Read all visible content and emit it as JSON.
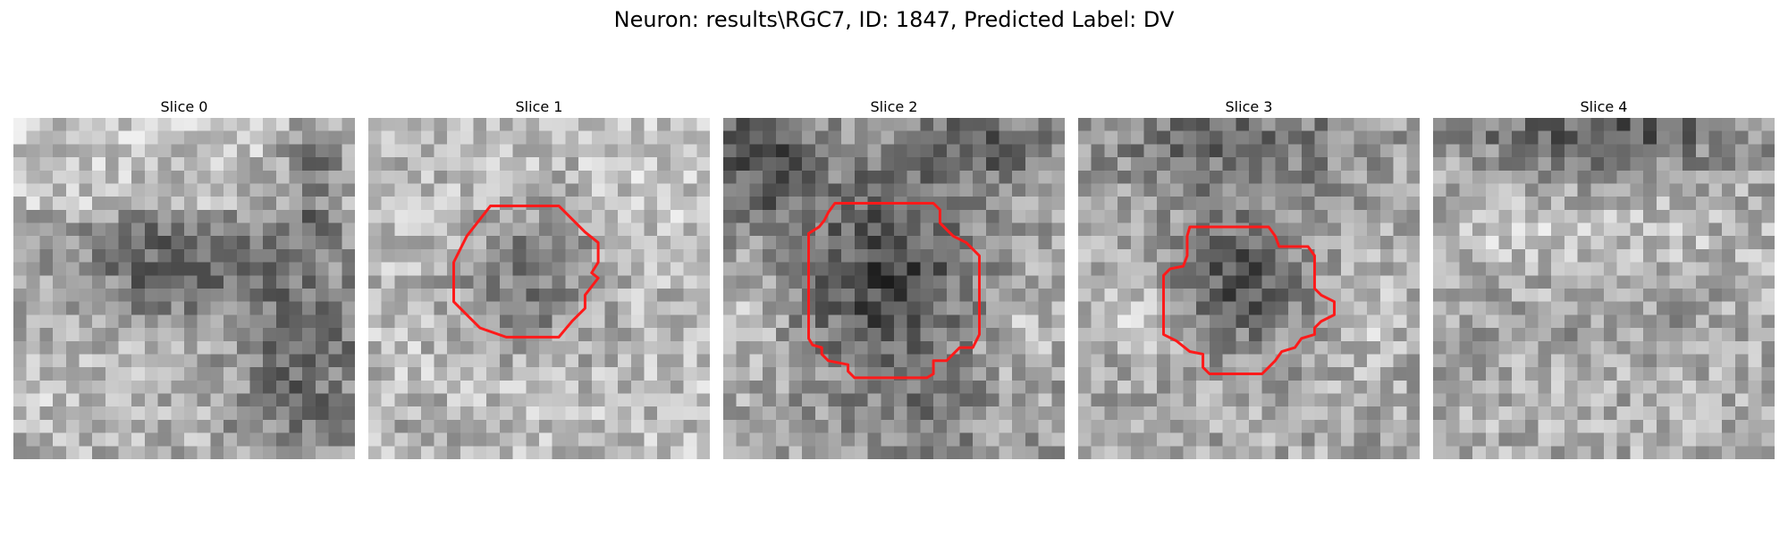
{
  "figure": {
    "title": "Neuron: results\\RGC7, ID: 1847, Predicted Label: DV",
    "outline_color": "#ff1a1a",
    "grid_size": 26
  },
  "panels": [
    {
      "title": "Slice 0",
      "has_outline": false
    },
    {
      "title": "Slice 1",
      "has_outline": true
    },
    {
      "title": "Slice 2",
      "has_outline": true
    },
    {
      "title": "Slice 3",
      "has_outline": true
    },
    {
      "title": "Slice 4",
      "has_outline": false
    }
  ]
}
